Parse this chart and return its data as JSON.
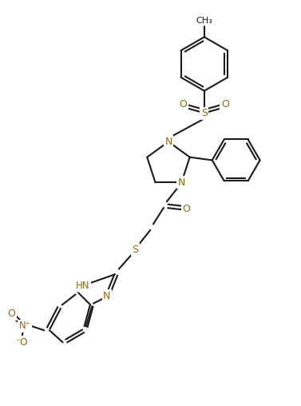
{
  "bg_color": "#ffffff",
  "line_color": "#1a1a1a",
  "n_color": "#8B6914",
  "o_color": "#8B6914",
  "s_color": "#8B6914",
  "figsize": [
    3.77,
    5.08
  ],
  "dpi": 100,
  "xlim": [
    0,
    10
  ],
  "ylim": [
    0,
    13.5
  ]
}
